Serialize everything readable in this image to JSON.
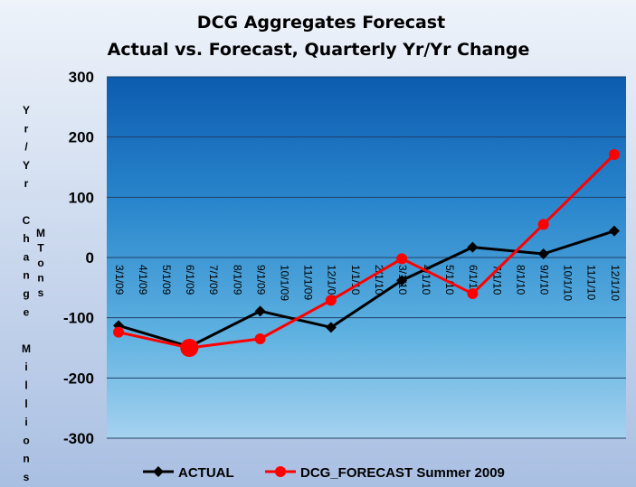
{
  "chart_data": {
    "type": "line",
    "title": "DCG Aggregates Forecast",
    "subtitle": "Actual vs. Forecast, Quarterly Yr/Yr Change",
    "ylabel_left": "Yr/Yr Change Millions",
    "ylabel_right": "MTons",
    "ylim": [
      -300,
      300
    ],
    "yticks": [
      "300",
      "200",
      "100",
      "0",
      "-100",
      "-200",
      "-300"
    ],
    "categories": [
      "3/1/09",
      "4/1/09",
      "5/1/09",
      "6/1/09",
      "7/1/09",
      "8/1/09",
      "9/1/09",
      "10/1/09",
      "11/1/09",
      "12/1/09",
      "1/1/10",
      "2/1/10",
      "3/1/10",
      "4/1/10",
      "5/1/10",
      "6/1/10",
      "7/1/10",
      "8/1/10",
      "9/1/10",
      "10/1/10",
      "11/1/10",
      "12/1/10"
    ],
    "grid": true,
    "legend_position": "bottom",
    "series": [
      {
        "name": "ACTUAL",
        "color": "#000000",
        "marker": "diamond",
        "points": [
          [
            "3/1/09",
            -113
          ],
          [
            "6/1/09",
            -148
          ],
          [
            "9/1/09",
            -89
          ],
          [
            "12/1/09",
            -116
          ],
          [
            "3/1/10",
            -38
          ],
          [
            "6/1/10",
            17
          ],
          [
            "9/1/10",
            6
          ],
          [
            "12/1/10",
            44
          ]
        ]
      },
      {
        "name": "DCG_FORECAST Summer 2009",
        "color": "#ff0000",
        "marker": "circle",
        "points": [
          [
            "3/1/09",
            -124
          ],
          [
            "6/1/09",
            -150
          ],
          [
            "9/1/09",
            -135
          ],
          [
            "12/1/09",
            -71
          ],
          [
            "3/1/10",
            -2
          ],
          [
            "6/1/10",
            -60
          ],
          [
            "9/1/10",
            55
          ],
          [
            "12/1/10",
            171
          ]
        ]
      }
    ]
  }
}
